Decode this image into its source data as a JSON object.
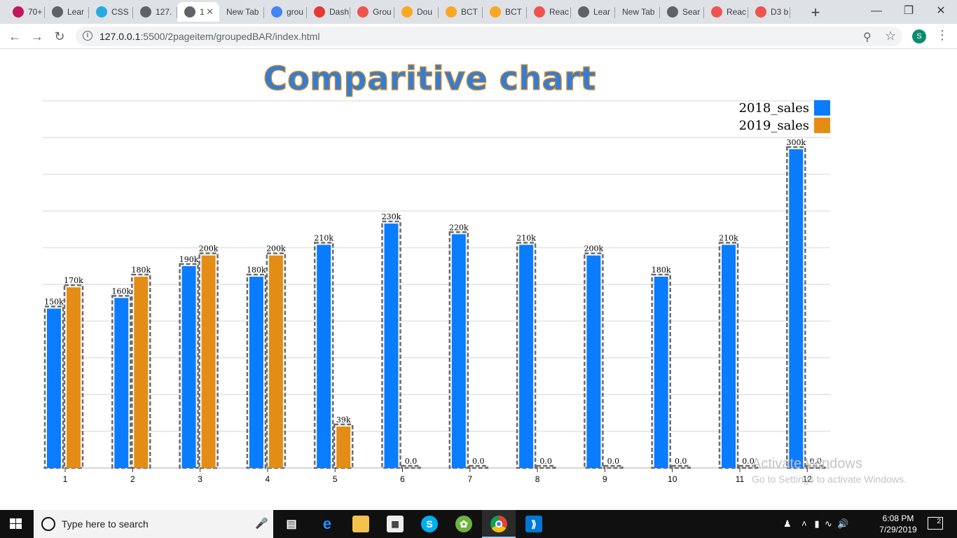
{
  "browser": {
    "tabs": [
      {
        "label": "70+",
        "icon": "jr-icon",
        "color": "#c2185b"
      },
      {
        "label": "Lear",
        "icon": "globe-icon",
        "color": "#5f6368"
      },
      {
        "label": "CSS",
        "icon": "wc-icon",
        "color": "#27aae1"
      },
      {
        "label": "127.",
        "icon": "globe-icon",
        "color": "#5f6368"
      },
      {
        "label": "1",
        "icon": "globe-icon",
        "color": "#5f6368",
        "active": true
      },
      {
        "label": "New Tab",
        "icon": "",
        "color": ""
      },
      {
        "label": "grou",
        "icon": "google-icon",
        "color": "#4285f4"
      },
      {
        "label": "Dash",
        "icon": "w-icon",
        "color": "#e53935"
      },
      {
        "label": "Grou",
        "icon": "cubes-icon",
        "color": "#ef5350"
      },
      {
        "label": "Dou",
        "icon": "chart-icon",
        "color": "#f9a825"
      },
      {
        "label": "BCT",
        "icon": "chart-icon",
        "color": "#f9a825"
      },
      {
        "label": "BCT",
        "icon": "chart-icon",
        "color": "#f9a825"
      },
      {
        "label": "Reac",
        "icon": "cubes-icon",
        "color": "#ef5350"
      },
      {
        "label": "Lear",
        "icon": "globe-icon",
        "color": "#5f6368"
      },
      {
        "label": "New Tab",
        "icon": "",
        "color": ""
      },
      {
        "label": "Sear",
        "icon": "globe-icon",
        "color": "#5f6368"
      },
      {
        "label": "Reac",
        "icon": "cubes-icon",
        "color": "#ef5350"
      },
      {
        "label": "D3 b",
        "icon": "cubes-icon",
        "color": "#ef5350"
      }
    ],
    "url_host": "127.0.0.1",
    "url_path": ":5500/2pageitem/groupedBAR/index.html",
    "avatar_letter": "S"
  },
  "chart_data": {
    "type": "bar",
    "title": "Comparitive chart",
    "categories": [
      "1",
      "2",
      "3",
      "4",
      "5",
      "6",
      "7",
      "8",
      "9",
      "10",
      "11",
      "12"
    ],
    "series": [
      {
        "name": "2018_sales",
        "color": "#0a7cff",
        "values": [
          150,
          160,
          190,
          180,
          210,
          230,
          220,
          210,
          200,
          180,
          210,
          300
        ],
        "labels": [
          "150k",
          "160k",
          "190k",
          "180k",
          "210k",
          "230k",
          "220k",
          "210k",
          "200k",
          "180k",
          "210k",
          "300k"
        ]
      },
      {
        "name": "2019_sales",
        "color": "#e38d17",
        "values": [
          170,
          180,
          200,
          200,
          39,
          0,
          0,
          0,
          0,
          0,
          0,
          0
        ],
        "labels": [
          "170k",
          "180k",
          "200k",
          "200k",
          "39k",
          "0.0",
          "0.0",
          "0.0",
          "0.0",
          "0.0",
          "0.0",
          "0.0"
        ]
      }
    ],
    "ylim": [
      0,
      300
    ],
    "grid": true,
    "legend_position": "top-right"
  },
  "watermark": {
    "line1": "Activate Windows",
    "line2": "Go to Settings to activate Windows."
  },
  "taskbar": {
    "search_placeholder": "Type here to search",
    "time": "6:08 PM",
    "date": "7/29/2019",
    "notification_count": "2"
  }
}
